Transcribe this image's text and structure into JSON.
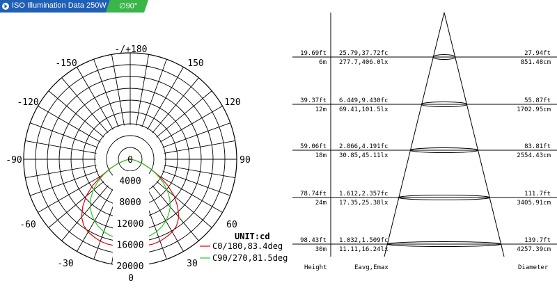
{
  "header": {
    "title": "ISO Illumination  Data",
    "power": "250W",
    "angle": "∅90°",
    "colors": {
      "blue": "#1f5fb5",
      "green": "#3ab54a"
    }
  },
  "chart_data": [
    {
      "type": "polar",
      "unit_label": "UNIT:cd",
      "angle_labels": [
        "-/+180",
        "-150",
        "150",
        "-120",
        "120",
        "-90",
        "90",
        "-60",
        "60",
        "-30",
        "30",
        "0"
      ],
      "radial_ticks": [
        "0",
        "4000",
        "8000",
        "12000",
        "16000",
        "20000"
      ],
      "r_max": 20000,
      "series": [
        {
          "name": "C0/180,83.4deg",
          "color": "#e00000",
          "angles_deg": [
            0,
            5,
            10,
            15,
            20,
            25,
            30,
            35,
            40,
            45,
            50,
            55,
            60,
            65,
            70,
            75,
            80,
            85,
            90
          ],
          "values": [
            14900,
            16300,
            16500,
            16500,
            16400,
            16100,
            15800,
            15200,
            14200,
            12600,
            10800,
            8600,
            6200,
            4200,
            2600,
            1400,
            600,
            200,
            0
          ]
        },
        {
          "name": "C90/270,81.5deg",
          "color": "#22cc22",
          "angles_deg": [
            0,
            5,
            10,
            15,
            20,
            25,
            30,
            35,
            40,
            45,
            50,
            55,
            60,
            65,
            70,
            75,
            80,
            85,
            90
          ],
          "values": [
            14900,
            15000,
            15000,
            14800,
            14500,
            14000,
            13400,
            12600,
            11700,
            10500,
            9100,
            7500,
            5800,
            4100,
            2600,
            1400,
            600,
            200,
            0
          ]
        }
      ]
    },
    {
      "type": "table",
      "columns": [
        "Height",
        "Eavg,Emax",
        "Diameter"
      ],
      "rows": [
        {
          "height_ft": "19.69ft",
          "height_m": "6m",
          "fc": "25.79,37.72fc",
          "lx": "277.7,406.0lx",
          "dia_ft": "27.94ft",
          "dia_cm": "851.48cm"
        },
        {
          "height_ft": "39.37ft",
          "height_m": "12m",
          "fc": "6.449,9.430fc",
          "lx": "69.41,101.5lx",
          "dia_ft": "55.87ft",
          "dia_cm": "1702.95cm"
        },
        {
          "height_ft": "59.06ft",
          "height_m": "18m",
          "fc": "2.866,4.191fc",
          "lx": "30.85,45.11lx",
          "dia_ft": "83.81ft",
          "dia_cm": "2554.43cm"
        },
        {
          "height_ft": "78.74ft",
          "height_m": "24m",
          "fc": "1.612,2.357fc",
          "lx": "17.35,25.38lx",
          "dia_ft": "111.7ft",
          "dia_cm": "3405.91cm"
        },
        {
          "height_ft": "98.43ft",
          "height_m": "30m",
          "fc": "1.032,1.509fc",
          "lx": "11.11,16.24lx",
          "dia_ft": "139.7ft",
          "dia_cm": "4257.39cm"
        }
      ]
    }
  ]
}
